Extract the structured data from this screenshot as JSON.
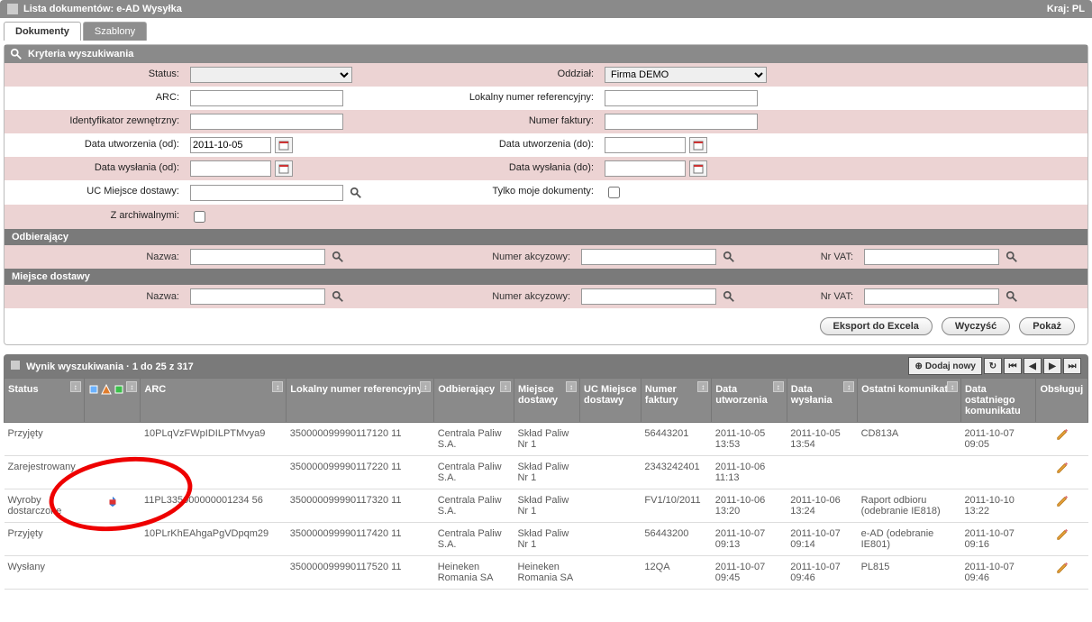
{
  "window": {
    "title": "Lista dokumentów:  e-AD Wysyłka",
    "country_label": "Kraj: PL"
  },
  "tabs": {
    "documents": "Dokumenty",
    "templates": "Szablony"
  },
  "criteria": {
    "header": "Kryteria wyszukiwania",
    "labels": {
      "status": "Status:",
      "oddzial": "Oddział:",
      "arc": "ARC:",
      "lokalny_numer": "Lokalny numer referencyjny:",
      "ident_zew": "Identyfikator zewnętrzny:",
      "numer_faktury": "Numer faktury:",
      "data_utw_od": "Data utworzenia (od):",
      "data_utw_do": "Data utworzenia (do):",
      "data_wys_od": "Data wysłania (od):",
      "data_wys_do": "Data wysłania (do):",
      "uc_miejsce": "UC Miejsce dostawy:",
      "tylko_moje": "Tylko moje dokumenty:",
      "z_archiwalnymi": "Z archiwalnymi:"
    },
    "values": {
      "status": "",
      "oddzial": "Firma DEMO",
      "arc": "",
      "lokalny_numer": "",
      "ident_zew": "",
      "numer_faktury": "",
      "data_utw_od": "2011-10-05",
      "data_utw_do": "",
      "data_wys_od": "",
      "data_wys_do": "",
      "uc_miejsce": "",
      "tylko_moje": false,
      "z_archiwalnymi": false
    },
    "odbierajacy_header": "Odbierający",
    "miejsce_header": "Miejsce dostawy",
    "sub_labels": {
      "nazwa": "Nazwa:",
      "numer_akcyzowy": "Numer akcyzowy:",
      "nr_vat": "Nr VAT:"
    }
  },
  "buttons": {
    "export_excel": "Eksport do Excela",
    "clear": "Wyczyść",
    "show": "Pokaż",
    "add_new": "Dodaj nowy"
  },
  "results": {
    "header": "Wynik wyszukiwania",
    "range_text": "1 do 25 z 317",
    "columns": {
      "status": "Status",
      "icons": "",
      "arc": "ARC",
      "lokalny": "Lokalny numer referencyjny",
      "odbierajacy": "Odbierający",
      "miejsce": "Miejsce dostawy",
      "uc_miejsce": "UC Miejsce dostawy",
      "faktura": "Numer faktury",
      "data_utw": "Data utworzenia",
      "data_wys": "Data wysłania",
      "ostatni": "Ostatni komunikat",
      "data_ost": "Data ostatniego komunikatu",
      "obsluguj": "Obsługuj"
    },
    "rows": [
      {
        "status": "Przyjęty",
        "icon": "",
        "arc": "10PLqVzFWpIDILPTMvya9",
        "lokalny": "350000099990117120 11",
        "odbierajacy": "Centrala Paliw S.A.",
        "miejsce": "Skład Paliw Nr 1",
        "uc": "",
        "faktura": "56443201",
        "data_utw": "2011-10-05 13:53",
        "data_wys": "2011-10-05 13:54",
        "ostatni": "CD813A",
        "data_ost": "2011-10-07 09:05"
      },
      {
        "status": "Zarejestrowany",
        "icon": "",
        "arc": "",
        "lokalny": "350000099990117220 11",
        "odbierajacy": "Centrala Paliw S.A.",
        "miejsce": "Skład Paliw Nr 1",
        "uc": "",
        "faktura": "2343242401",
        "data_utw": "2011-10-06 11:13",
        "data_wys": "",
        "ostatni": "",
        "data_ost": ""
      },
      {
        "status": "Wyroby dostarczone",
        "icon": "receipt",
        "arc": "11PL335000000001234 56",
        "lokalny": "350000099990117320 11",
        "odbierajacy": "Centrala Paliw S.A.",
        "miejsce": "Skład Paliw Nr 1",
        "uc": "",
        "faktura": "FV1/10/2011",
        "data_utw": "2011-10-06 13:20",
        "data_wys": "2011-10-06 13:24",
        "ostatni": "Raport odbioru (odebranie IE818)",
        "data_ost": "2011-10-10 13:22"
      },
      {
        "status": "Przyjęty",
        "icon": "",
        "arc": "10PLrKhEAhgaPgVDpqm29",
        "lokalny": "350000099990117420 11",
        "odbierajacy": "Centrala Paliw S.A.",
        "miejsce": "Skład Paliw Nr 1",
        "uc": "",
        "faktura": "56443200",
        "data_utw": "2011-10-07 09:13",
        "data_wys": "2011-10-07 09:14",
        "ostatni": "e-AD (odebranie IE801)",
        "data_ost": "2011-10-07 09:16"
      },
      {
        "status": "Wysłany",
        "icon": "",
        "arc": "",
        "lokalny": "350000099990117520 11",
        "odbierajacy": "Heineken Romania SA",
        "miejsce": "Heineken Romania SA",
        "uc": "",
        "faktura": "12QA",
        "data_utw": "2011-10-07 09:45",
        "data_wys": "2011-10-07 09:46",
        "ostatni": "PL815",
        "data_ost": "2011-10-07 09:46"
      }
    ]
  },
  "colors": {
    "header_bg": "#8a8a8a",
    "pink_bg": "#ecd3d3",
    "text": "#333333",
    "red_annot": "#e00000"
  }
}
